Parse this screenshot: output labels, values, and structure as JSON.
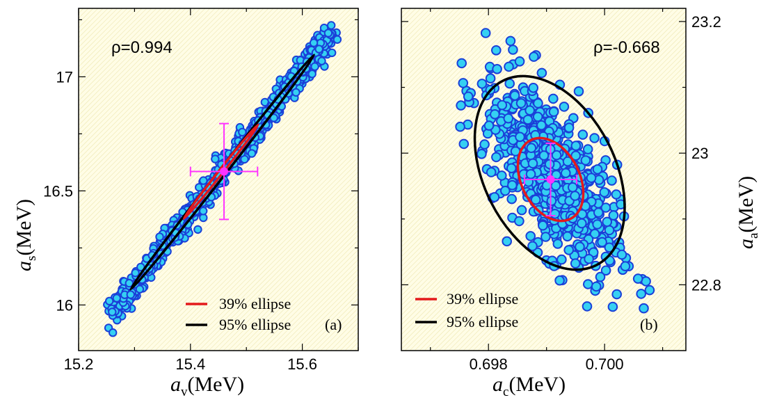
{
  "colors": {
    "background": "#fffde6",
    "point_fill": "#35d0f2",
    "point_stroke": "#1b3fd8",
    "ellipse39": "#e31a1c",
    "ellipse95": "#000000",
    "errorbar": "#ff33ff"
  },
  "chart_data": [
    {
      "id": "a",
      "type": "scatter",
      "panel_label": "(a)",
      "annotation": "ρ=0.994",
      "correlation": 0.994,
      "xlabel": {
        "symbol": "a",
        "sub": "v",
        "unit": "(MeV)"
      },
      "ylabel": {
        "symbol": "a",
        "sub": "s",
        "unit": "(MeV)"
      },
      "xlim": [
        15.2,
        15.7
      ],
      "ylim": [
        15.8,
        17.3
      ],
      "xticks": [
        15.2,
        15.4,
        15.6
      ],
      "xtick_labels": [
        "15.2",
        "15.4",
        "15.6"
      ],
      "yticks": [
        16,
        16.5,
        17
      ],
      "ytick_labels": [
        "16",
        "16.5",
        "17"
      ],
      "y_axis_side": "left",
      "central_value": {
        "x": 15.46,
        "y": 16.585,
        "x_err": 0.06,
        "y_err": 0.21
      },
      "ellipse95": {
        "center": [
          15.455,
          16.585
        ],
        "endpoints": [
          [
            15.293,
            16.068
          ],
          [
            15.621,
            17.096
          ]
        ],
        "half_width_y": 0.025
      },
      "ellipse39": {
        "center": [
          15.455,
          16.585
        ],
        "endpoints": [
          [
            15.388,
            16.378
          ],
          [
            15.521,
            16.79
          ]
        ],
        "half_width_y": 0.013
      },
      "scatter_cloud": {
        "n_points": 900,
        "x_range": [
          15.23,
          15.675
        ],
        "y_range": [
          15.83,
          17.27
        ]
      },
      "legend": [
        {
          "label": "39% ellipse",
          "color": "#e31a1c"
        },
        {
          "label": "95% ellipse",
          "color": "#000000"
        }
      ],
      "legend_position": "bottom-right",
      "grid": false
    },
    {
      "id": "b",
      "type": "scatter",
      "panel_label": "(b)",
      "annotation": "ρ=-0.668",
      "correlation": -0.668,
      "xlabel": {
        "symbol": "a",
        "sub": "c",
        "unit": "(MeV)"
      },
      "ylabel": {
        "symbol": "a",
        "sub": "a",
        "unit": "(MeV)"
      },
      "xlim": [
        0.6965,
        0.7014
      ],
      "ylim": [
        22.7,
        23.22
      ],
      "xticks": [
        0.698,
        0.7
      ],
      "xtick_labels": [
        "0.698",
        "0.700"
      ],
      "yticks": [
        22.8,
        23.0,
        23.2
      ],
      "ytick_labels": [
        "22.8",
        "23",
        "23.2"
      ],
      "y_axis_side": "right",
      "central_value": {
        "x": 0.69907,
        "y": 22.96,
        "x_err": 0.00045,
        "y_err": 0.055
      },
      "ellipse95": {
        "center": [
          0.699055,
          22.97
        ],
        "semi_axes_rx_ry": [
          0.00113,
          0.157
        ],
        "tilt": "down-right"
      },
      "ellipse39": {
        "center": [
          0.69907,
          22.96
        ],
        "semi_axes_rx_ry": [
          0.0005,
          0.067
        ],
        "tilt": "down-right"
      },
      "scatter_cloud": {
        "n_points": 700,
        "x_range": [
          0.6973,
          0.7009
        ],
        "y_range": [
          22.76,
          23.19
        ]
      },
      "legend": [
        {
          "label": "39% ellipse",
          "color": "#e31a1c"
        },
        {
          "label": "95% ellipse",
          "color": "#000000"
        }
      ],
      "legend_position": "bottom-left",
      "grid": false
    }
  ]
}
